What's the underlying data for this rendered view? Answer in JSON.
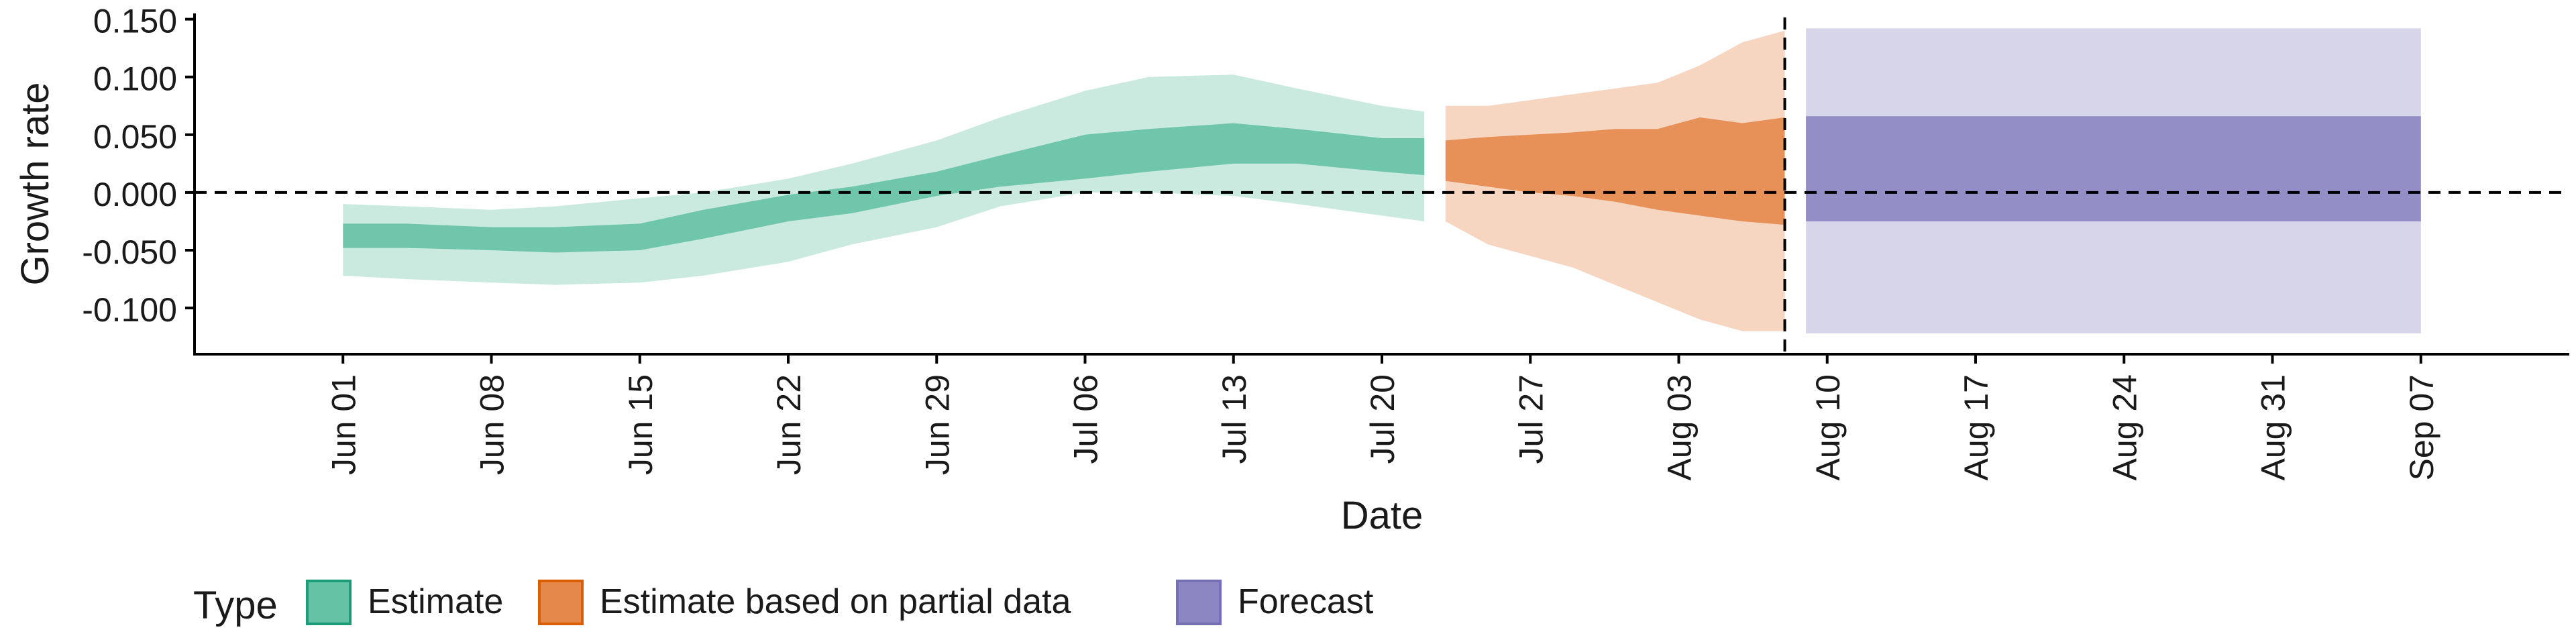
{
  "chart_data": {
    "type": "area",
    "xlabel": "Date",
    "ylabel": "Growth rate",
    "x_domain": [
      "2020-05-25",
      "2020-09-14"
    ],
    "ylim": [
      -0.14,
      0.155
    ],
    "y_ticks": [
      -0.1,
      -0.05,
      0.0,
      0.05,
      0.1,
      0.15
    ],
    "y_tick_labels": [
      "-0.100",
      "-0.050",
      "0.000",
      "0.050",
      "0.100",
      "0.150"
    ],
    "x_ticks": [
      "2020-06-01",
      "2020-06-08",
      "2020-06-15",
      "2020-06-22",
      "2020-06-29",
      "2020-07-06",
      "2020-07-13",
      "2020-07-20",
      "2020-07-27",
      "2020-08-03",
      "2020-08-10",
      "2020-08-17",
      "2020-08-24",
      "2020-08-31",
      "2020-09-07"
    ],
    "x_tick_labels": [
      "Jun 01",
      "Jun 08",
      "Jun 15",
      "Jun 22",
      "Jun 29",
      "Jul 06",
      "Jul 13",
      "Jul 20",
      "Jul 27",
      "Aug 03",
      "Aug 10",
      "Aug 17",
      "Aug 24",
      "Aug 31",
      "Sep 07"
    ],
    "reference_hline": 0.0,
    "reference_vline": "2020-08-08",
    "grid": false,
    "legend": {
      "title": "Type",
      "position": "bottom-left",
      "entries": [
        {
          "label": "Estimate",
          "color": "#66c2a5"
        },
        {
          "label": "Estimate based on partial data",
          "color": "#e5884c"
        },
        {
          "label": "Forecast",
          "color": "#8c86c2"
        }
      ]
    },
    "series": [
      {
        "type": "Estimate",
        "color": "#66c2a5",
        "border_color": "#1b9e77",
        "x": [
          "2020-06-01",
          "2020-06-04",
          "2020-06-08",
          "2020-06-11",
          "2020-06-15",
          "2020-06-18",
          "2020-06-22",
          "2020-06-25",
          "2020-06-29",
          "2020-07-02",
          "2020-07-06",
          "2020-07-09",
          "2020-07-13",
          "2020-07-16",
          "2020-07-20",
          "2020-07-22"
        ],
        "upper_90": [
          -0.01,
          -0.012,
          -0.015,
          -0.012,
          -0.005,
          0.0,
          0.012,
          0.025,
          0.045,
          0.065,
          0.088,
          0.1,
          0.102,
          0.09,
          0.075,
          0.07
        ],
        "upper_50": [
          -0.027,
          -0.027,
          -0.03,
          -0.03,
          -0.027,
          -0.015,
          -0.002,
          0.005,
          0.018,
          0.032,
          0.05,
          0.055,
          0.06,
          0.055,
          0.047,
          0.047
        ],
        "lower_50": [
          -0.048,
          -0.048,
          -0.05,
          -0.052,
          -0.05,
          -0.04,
          -0.025,
          -0.018,
          -0.003,
          0.005,
          0.012,
          0.018,
          0.025,
          0.025,
          0.018,
          0.015
        ],
        "lower_90": [
          -0.072,
          -0.075,
          -0.078,
          -0.08,
          -0.078,
          -0.072,
          -0.06,
          -0.045,
          -0.03,
          -0.012,
          0.0,
          0.0,
          -0.003,
          -0.01,
          -0.02,
          -0.025
        ]
      },
      {
        "type": "Estimate based on partial data",
        "color": "#e5884c",
        "border_color": "#d95f02",
        "x": [
          "2020-07-23",
          "2020-07-25",
          "2020-07-27",
          "2020-07-29",
          "2020-07-31",
          "2020-08-02",
          "2020-08-04",
          "2020-08-06",
          "2020-08-08"
        ],
        "upper_90": [
          0.075,
          0.075,
          0.08,
          0.085,
          0.09,
          0.095,
          0.11,
          0.13,
          0.14
        ],
        "upper_50": [
          0.045,
          0.048,
          0.05,
          0.052,
          0.055,
          0.055,
          0.065,
          0.06,
          0.065
        ],
        "lower_50": [
          0.01,
          0.005,
          0.0,
          -0.003,
          -0.008,
          -0.015,
          -0.02,
          -0.025,
          -0.028
        ],
        "lower_90": [
          -0.025,
          -0.045,
          -0.055,
          -0.065,
          -0.08,
          -0.095,
          -0.11,
          -0.12,
          -0.12
        ]
      },
      {
        "type": "Forecast",
        "color": "#8c86c2",
        "border_color": "#7570b3",
        "x": [
          "2020-08-09",
          "2020-09-07"
        ],
        "upper_90": [
          0.142,
          0.142
        ],
        "upper_50": [
          0.066,
          0.066
        ],
        "lower_50": [
          -0.025,
          -0.025
        ],
        "lower_90": [
          -0.122,
          -0.122
        ]
      }
    ]
  }
}
